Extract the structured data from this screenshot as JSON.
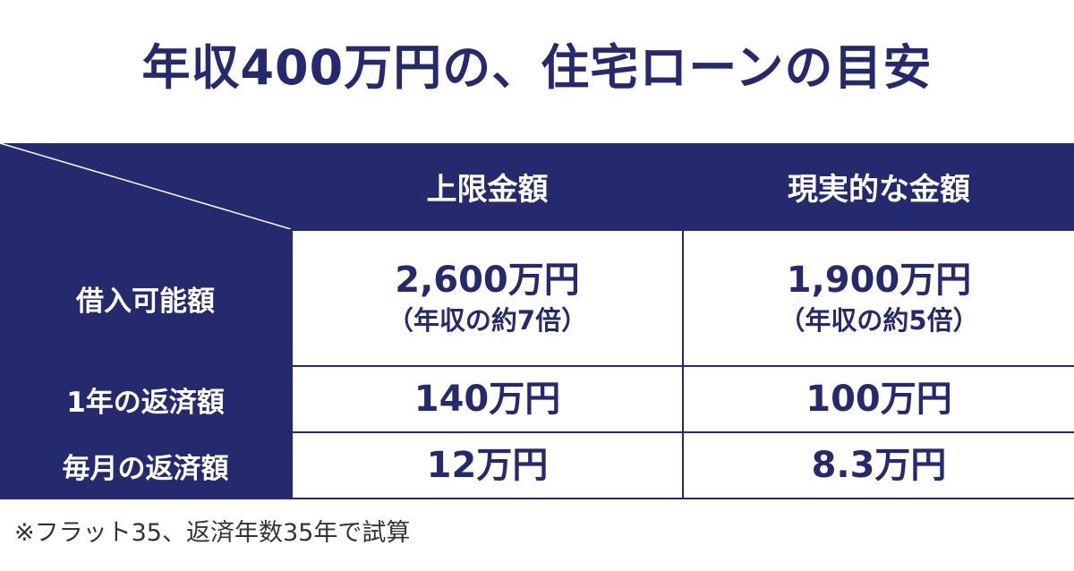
{
  "title": "年収400万円の、住宅ローンの目安",
  "table": {
    "columns": [
      "上限金額",
      "現実的な金額"
    ],
    "rows": [
      {
        "label": "借入可能額",
        "cells": [
          {
            "value": "2,600万円",
            "sub": "（年収の約7倍）"
          },
          {
            "value": "1,900万円",
            "sub": "（年収の約5倍）"
          }
        ]
      },
      {
        "label": "1年の返済額",
        "cells": [
          {
            "value": "140万円"
          },
          {
            "value": "100万円"
          }
        ]
      },
      {
        "label": "毎月の返済額",
        "cells": [
          {
            "value": "12万円"
          },
          {
            "value": "8.3万円"
          }
        ]
      }
    ]
  },
  "footnote": "※フラット35、返済年数35年で試算",
  "colors": {
    "navy": "#252a6e",
    "white": "#ffffff",
    "footnote_text": "#333333"
  }
}
